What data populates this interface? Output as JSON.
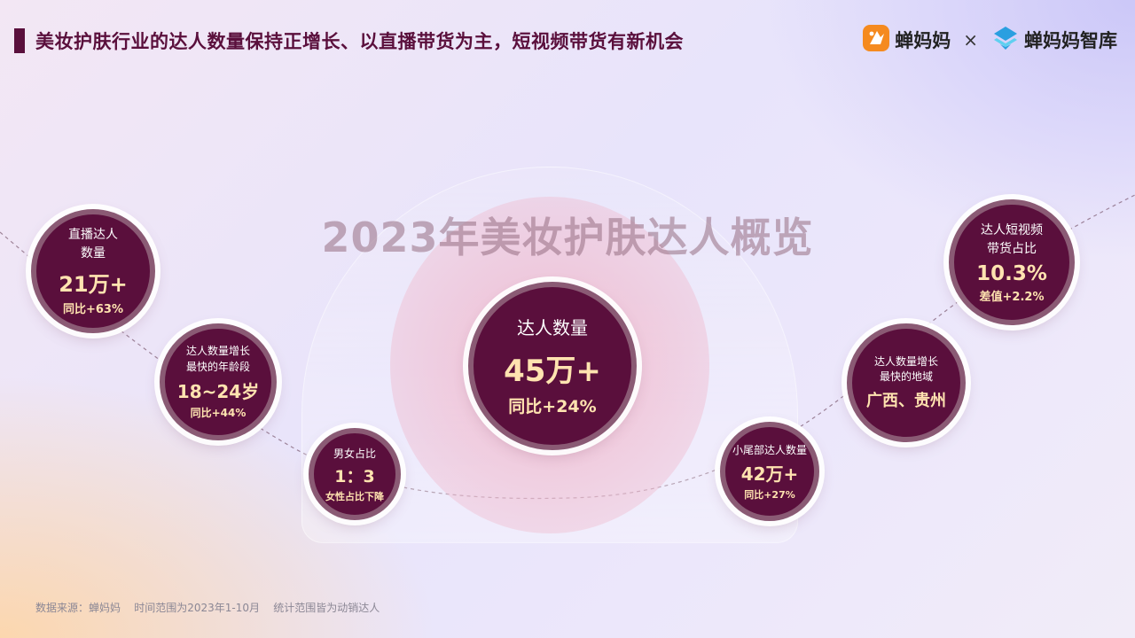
{
  "header": {
    "title": "美妆护肤行业的达人数量保持正增长、以直播带货为主，短视频带货有新机会",
    "logo_left": "蝉妈妈",
    "separator": "×",
    "logo_right": "蝉妈妈智库"
  },
  "overview_title": "2023年美妆护肤达人概览",
  "center": {
    "label": "达人数量",
    "value": "45万+",
    "growth": "同比+24%"
  },
  "bubbles": {
    "live": {
      "label1": "直播达人",
      "label2": "数量",
      "value": "21万+",
      "growth": "同比+63%"
    },
    "age": {
      "label1": "达人数量增长",
      "label2": "最快的年龄段",
      "value": "18~24岁",
      "growth": "同比+44%"
    },
    "gender": {
      "label1": "男女占比",
      "value": "1：3",
      "growth": "女性占比下降"
    },
    "tail": {
      "label1": "小尾部达人数量",
      "value": "42万+",
      "growth": "同比+27%"
    },
    "region": {
      "label1": "达人数量增长",
      "label2": "最快的地域",
      "value": "广西、贵州"
    },
    "video": {
      "label1": "达人短视频",
      "label2": "带货占比",
      "value": "10.3%",
      "growth": "差值+2.2%"
    }
  },
  "footer": "数据来源：蝉妈妈    时间范围为2023年1-10月    统计范围皆为动销达人",
  "colors": {
    "primary": "#5a0f3c",
    "accent": "#ffe3b0",
    "logo_orange": "#f58a1f",
    "logo_blue": "#2a9fe0"
  }
}
